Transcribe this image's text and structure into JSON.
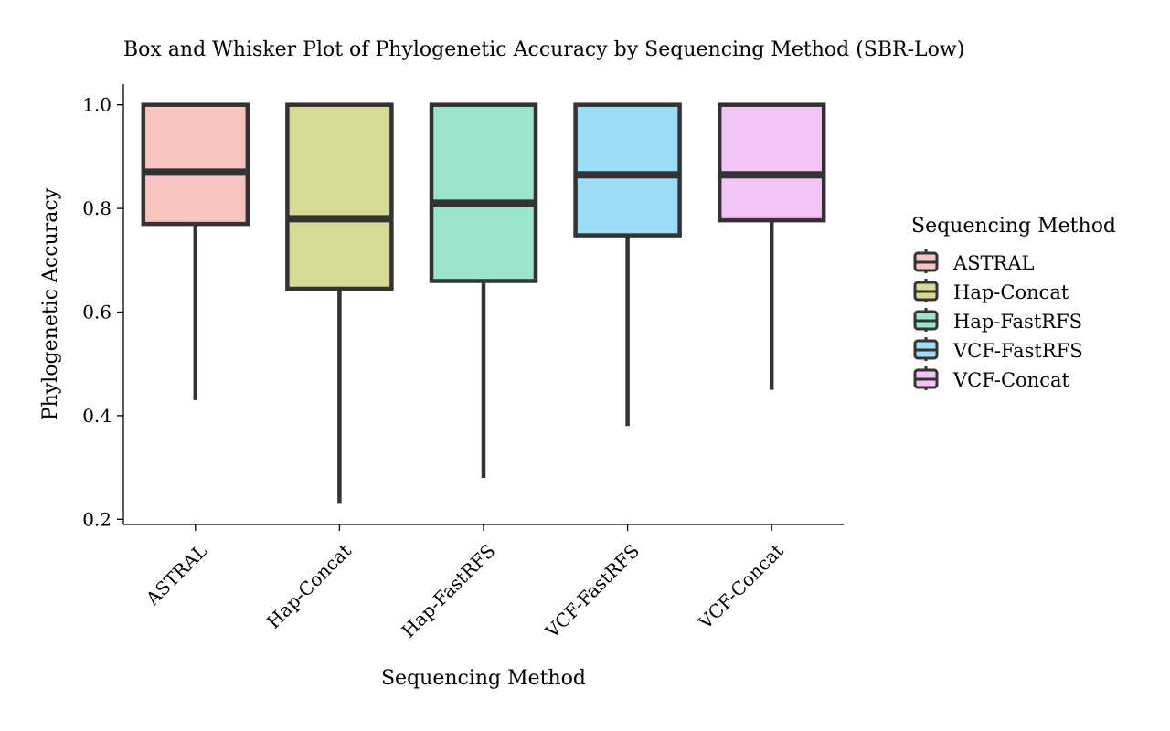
{
  "chart_data": {
    "type": "box",
    "title": "Box and Whisker Plot of Phylogenetic Accuracy by Sequencing Method (SBR-Low)",
    "xlabel": "Sequencing Method",
    "ylabel": "Phylogenetic Accuracy",
    "ylim": [
      0.19,
      1.04
    ],
    "yticks": [
      "0.2",
      "0.4",
      "0.6",
      "0.8",
      "1.0"
    ],
    "grid": false,
    "legend": {
      "title": "Sequencing Method",
      "placement": "right"
    },
    "categories": [
      "ASTRAL",
      "Hap-Concat",
      "Hap-FastRFS",
      "VCF-FastRFS",
      "VCF-Concat"
    ],
    "series": [
      {
        "name": "ASTRAL",
        "min": 0.43,
        "q1": 0.77,
        "median": 0.87,
        "q3": 1.0,
        "max": 1.0,
        "color": "#F8C4C2"
      },
      {
        "name": "Hap-Concat",
        "min": 0.23,
        "q1": 0.645,
        "median": 0.78,
        "q3": 1.0,
        "max": 1.0,
        "color": "#D8D996"
      },
      {
        "name": "Hap-FastRFS",
        "min": 0.28,
        "q1": 0.66,
        "median": 0.81,
        "q3": 1.0,
        "max": 1.0,
        "color": "#9BE5CB"
      },
      {
        "name": "VCF-FastRFS",
        "min": 0.38,
        "q1": 0.748,
        "median": 0.865,
        "q3": 1.0,
        "max": 1.0,
        "color": "#9BDDF7"
      },
      {
        "name": "VCF-Concat",
        "min": 0.45,
        "q1": 0.777,
        "median": 0.865,
        "q3": 1.0,
        "max": 1.0,
        "color": "#F3C3F7"
      }
    ]
  }
}
